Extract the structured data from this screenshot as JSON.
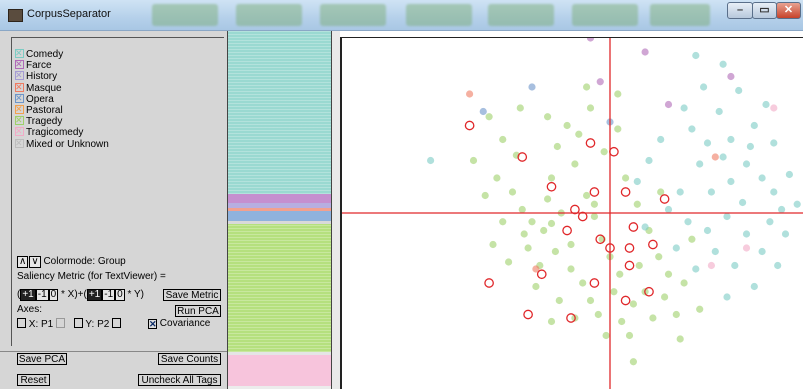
{
  "window": {
    "title": "CorpusSeparator"
  },
  "legend": [
    {
      "label": "Comedy",
      "color": "#7cccc4"
    },
    {
      "label": "Farce",
      "color": "#b06ab8"
    },
    {
      "label": "History",
      "color": "#a59bd3"
    },
    {
      "label": "Masque",
      "color": "#ef7b62"
    },
    {
      "label": "Opera",
      "color": "#6d95c9"
    },
    {
      "label": "Pastoral",
      "color": "#f2a04e"
    },
    {
      "label": "Tragedy",
      "color": "#9ed06a"
    },
    {
      "label": "Tragicomedy",
      "color": "#f2aac6"
    },
    {
      "label": "Mixed or Unknown",
      "color": "#bdbdbd"
    }
  ],
  "controls": {
    "colormode_btn1": "∧",
    "colormode_btn2": "∨",
    "colormode_label": "Colormode: Group",
    "saliency_label": "Saliency Metric (for TextViewer) =",
    "paren_open": "(",
    "x_btns": [
      "+1",
      "-1",
      "0"
    ],
    "x_suffix": "* X)+(",
    "y_btns": [
      "+1",
      "-1",
      "0"
    ],
    "y_suffix": "* Y)",
    "save_metric": "Save Metric",
    "axes_label": "Axes:",
    "run_pca": "Run PCA",
    "x_axis": "X: P1",
    "y_axis": "Y: P2",
    "covariance": "Covariance",
    "save_pca": "Save PCA",
    "save_counts": "Save Counts",
    "reset": "Reset",
    "uncheck_all": "Uncheck All Tags"
  },
  "stripe": [
    {
      "genre": "Comedy",
      "fraction": 0.455,
      "color": "#9ad9d1"
    },
    {
      "genre": "Farce",
      "fraction": 0.025,
      "color": "#c58fcf"
    },
    {
      "genre": "History",
      "fraction": 0.014,
      "color": "#b7aee0"
    },
    {
      "genre": "Masque",
      "fraction": 0.008,
      "color": "#f2a08e"
    },
    {
      "genre": "Opera",
      "fraction": 0.03,
      "color": "#8fb2dd"
    },
    {
      "genre": "Mixed or Unknown",
      "fraction": 0.008,
      "color": "#d9d9d9"
    },
    {
      "genre": "Tragedy",
      "fraction": 0.356,
      "color": "#b5e07e"
    },
    {
      "genre": "Mixed or Unknown",
      "fraction": 0.01,
      "color": "#e5e5e5"
    },
    {
      "genre": "Tragicomedy",
      "fraction": 0.085,
      "color": "#f7c4dc"
    },
    {
      "genre": "Mixed or Unknown",
      "fraction": 0.009,
      "color": "#ececec"
    }
  ],
  "scatter": {
    "axis_color": "#e0282b",
    "highlight_color": "#e0282b",
    "x_range": [
      -1,
      1
    ],
    "y_range": [
      -1,
      1
    ],
    "origin": [
      0,
      0
    ],
    "points_tragedy_color": "#b9df86",
    "points_comedy_color": "#9fd6cf"
  },
  "chart_data": {
    "type": "scatter",
    "x_range": [
      -1,
      1
    ],
    "y_range": [
      -1,
      1
    ],
    "series": [
      {
        "genre": "Tragedy",
        "points": [
          [
            -0.62,
            0.55
          ],
          [
            -0.55,
            0.42
          ],
          [
            -0.48,
            0.33
          ],
          [
            -0.58,
            0.2
          ],
          [
            -0.5,
            0.12
          ],
          [
            -0.45,
            0.02
          ],
          [
            -0.4,
            -0.05
          ],
          [
            -0.34,
            -0.1
          ],
          [
            -0.3,
            0.2
          ],
          [
            -0.27,
            0.38
          ],
          [
            -0.22,
            0.5
          ],
          [
            -0.18,
            0.28
          ],
          [
            -0.12,
            0.1
          ],
          [
            -0.08,
            -0.02
          ],
          [
            -0.04,
            -0.15
          ],
          [
            0.0,
            -0.25
          ],
          [
            -0.28,
            -0.22
          ],
          [
            -0.36,
            -0.3
          ],
          [
            -0.42,
            -0.2
          ],
          [
            -0.2,
            -0.32
          ],
          [
            -0.14,
            -0.4
          ],
          [
            -0.1,
            -0.5
          ],
          [
            -0.06,
            -0.58
          ],
          [
            0.02,
            -0.45
          ],
          [
            0.06,
            -0.62
          ],
          [
            0.1,
            -0.7
          ],
          [
            0.12,
            -0.52
          ],
          [
            0.18,
            -0.45
          ],
          [
            0.15,
            -0.3
          ],
          [
            0.2,
            -0.1
          ],
          [
            0.25,
            -0.25
          ],
          [
            0.3,
            -0.35
          ],
          [
            0.22,
            -0.6
          ],
          [
            -0.25,
            0.0
          ],
          [
            -0.32,
            0.08
          ],
          [
            -0.16,
            0.45
          ],
          [
            -0.1,
            0.6
          ],
          [
            -0.03,
            0.35
          ],
          [
            0.04,
            0.48
          ],
          [
            0.08,
            0.2
          ],
          [
            -0.55,
            -0.05
          ],
          [
            -0.64,
            0.1
          ],
          [
            -0.7,
            0.3
          ],
          [
            -0.38,
            -0.42
          ],
          [
            -0.26,
            -0.5
          ],
          [
            -0.18,
            -0.6
          ],
          [
            -0.02,
            -0.7
          ],
          [
            0.28,
            -0.48
          ],
          [
            0.34,
            -0.58
          ],
          [
            0.36,
            -0.72
          ],
          [
            -0.46,
            0.6
          ],
          [
            -0.32,
            0.55
          ],
          [
            -0.12,
            0.72
          ],
          [
            0.04,
            0.68
          ],
          [
            -0.6,
            -0.18
          ],
          [
            -0.52,
            -0.28
          ],
          [
            -0.44,
            -0.12
          ],
          [
            -0.08,
            0.05
          ],
          [
            0.14,
            0.05
          ],
          [
            0.26,
            0.12
          ],
          [
            -0.3,
            -0.06
          ],
          [
            -0.2,
            -0.18
          ],
          [
            0.05,
            -0.35
          ],
          [
            0.42,
            -0.15
          ],
          [
            0.38,
            -0.4
          ],
          [
            0.46,
            -0.55
          ],
          [
            0.12,
            -0.85
          ],
          [
            -0.3,
            -0.62
          ]
        ]
      },
      {
        "genre": "Comedy",
        "points": [
          [
            0.42,
            0.48
          ],
          [
            0.5,
            0.4
          ],
          [
            0.58,
            0.32
          ],
          [
            0.62,
            0.18
          ],
          [
            0.7,
            0.28
          ],
          [
            0.78,
            0.2
          ],
          [
            0.84,
            0.12
          ],
          [
            0.88,
            0.02
          ],
          [
            0.92,
            0.22
          ],
          [
            0.74,
            0.5
          ],
          [
            0.8,
            0.62
          ],
          [
            0.66,
            0.7
          ],
          [
            0.56,
            0.58
          ],
          [
            0.46,
            0.28
          ],
          [
            0.36,
            0.12
          ],
          [
            0.3,
            0.02
          ],
          [
            0.4,
            -0.05
          ],
          [
            0.5,
            -0.1
          ],
          [
            0.6,
            -0.02
          ],
          [
            0.7,
            -0.12
          ],
          [
            0.78,
            -0.22
          ],
          [
            0.86,
            -0.3
          ],
          [
            0.64,
            -0.3
          ],
          [
            0.54,
            -0.22
          ],
          [
            0.44,
            -0.32
          ],
          [
            0.34,
            -0.2
          ],
          [
            0.74,
            -0.42
          ],
          [
            0.6,
            -0.48
          ],
          [
            0.9,
            -0.12
          ],
          [
            0.96,
            0.05
          ],
          [
            0.2,
            0.3
          ],
          [
            0.26,
            0.42
          ],
          [
            0.14,
            0.18
          ],
          [
            0.48,
            0.72
          ],
          [
            0.38,
            0.6
          ],
          [
            0.62,
            0.42
          ],
          [
            0.72,
            0.38
          ],
          [
            0.84,
            0.4
          ],
          [
            0.68,
            0.06
          ],
          [
            0.52,
            0.12
          ],
          [
            0.82,
            -0.05
          ],
          [
            0.58,
            0.85
          ],
          [
            0.44,
            0.9
          ],
          [
            -0.92,
            0.3
          ],
          [
            0.18,
            -0.08
          ]
        ]
      },
      {
        "genre": "Farce",
        "points": [
          [
            -0.1,
            1.0
          ],
          [
            -0.05,
            0.75
          ],
          [
            0.18,
            0.92
          ],
          [
            0.62,
            0.78
          ],
          [
            0.3,
            0.62
          ]
        ]
      },
      {
        "genre": "Opera",
        "points": [
          [
            -0.4,
            0.72
          ],
          [
            -0.65,
            0.58
          ],
          [
            0.0,
            0.52
          ]
        ]
      },
      {
        "genre": "Masque",
        "points": [
          [
            -0.72,
            0.68
          ],
          [
            -0.38,
            -0.32
          ],
          [
            0.54,
            0.32
          ]
        ]
      },
      {
        "genre": "Tragicomedy",
        "points": [
          [
            0.52,
            -0.3
          ],
          [
            0.84,
            0.6
          ],
          [
            0.7,
            -0.2
          ]
        ]
      }
    ],
    "highlighted": [
      [
        -0.45,
        0.32
      ],
      [
        -0.3,
        0.15
      ],
      [
        -0.18,
        0.02
      ],
      [
        -0.22,
        -0.1
      ],
      [
        -0.35,
        -0.35
      ],
      [
        -0.1,
        0.4
      ],
      [
        -0.14,
        -0.02
      ],
      [
        -0.05,
        -0.15
      ],
      [
        0.0,
        -0.2
      ],
      [
        0.02,
        0.35
      ],
      [
        -0.08,
        0.12
      ],
      [
        0.08,
        0.12
      ],
      [
        0.1,
        -0.2
      ],
      [
        0.12,
        -0.08
      ],
      [
        0.1,
        -0.3
      ],
      [
        0.28,
        0.08
      ],
      [
        0.2,
        -0.45
      ],
      [
        0.08,
        -0.5
      ],
      [
        -0.08,
        -0.4
      ],
      [
        -0.2,
        -0.6
      ],
      [
        -0.42,
        -0.58
      ],
      [
        -0.62,
        -0.4
      ],
      [
        -0.72,
        0.5
      ],
      [
        0.22,
        -0.18
      ]
    ]
  }
}
